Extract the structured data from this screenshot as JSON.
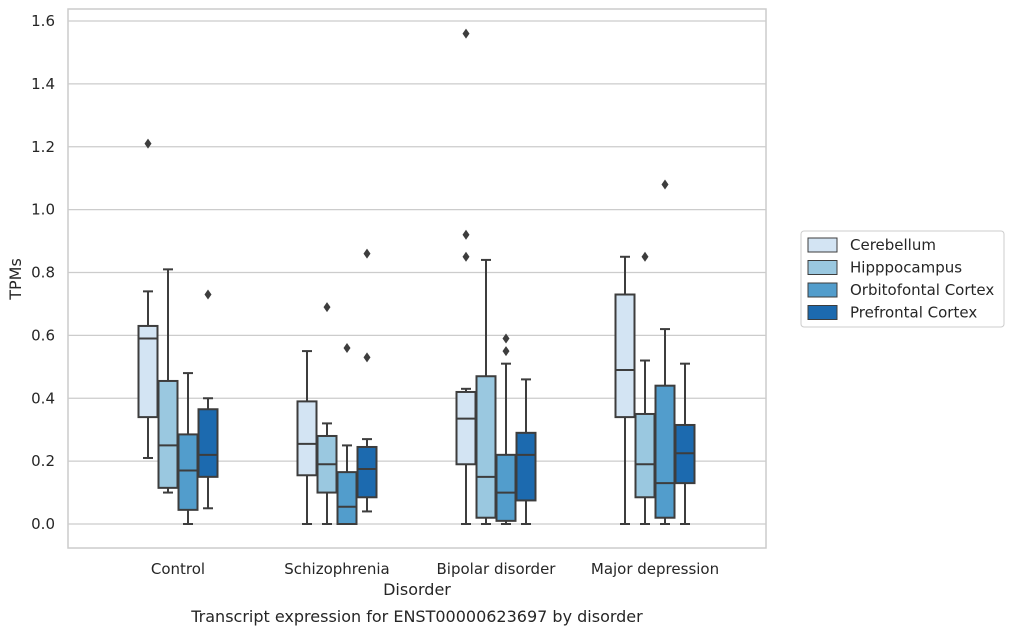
{
  "chart_data": {
    "type": "box",
    "caption": "Transcript expression for ENST00000623697 by disorder",
    "xlabel": "Disorder",
    "ylabel": "TPMs",
    "ylim": [
      -0.075,
      1.64
    ],
    "yticks": [
      0.0,
      0.2,
      0.4,
      0.6,
      0.8,
      1.0,
      1.2,
      1.4,
      1.6
    ],
    "ytick_labels": [
      "0.0",
      "0.2",
      "0.4",
      "0.6",
      "0.8",
      "1.0",
      "1.2",
      "1.4",
      "1.6"
    ],
    "grid": "horizontal",
    "legend_position": "right",
    "categories": [
      "Control",
      "Schizophrenia",
      "Bipolar disorder",
      "Major depression"
    ],
    "series": [
      {
        "name": "Cerebellum",
        "color": "#d3e4f3",
        "boxes": [
          {
            "whisker_low": 0.21,
            "q1": 0.34,
            "median": 0.59,
            "q3": 0.63,
            "whisker_high": 0.74,
            "outliers": [
              1.21
            ]
          },
          {
            "whisker_low": 0.0,
            "q1": 0.155,
            "median": 0.255,
            "q3": 0.39,
            "whisker_high": 0.55,
            "outliers": []
          },
          {
            "whisker_low": 0.0,
            "q1": 0.19,
            "median": 0.335,
            "q3": 0.42,
            "whisker_high": 0.43,
            "outliers": [
              0.85,
              0.92,
              1.56
            ]
          },
          {
            "whisker_low": 0.0,
            "q1": 0.34,
            "median": 0.49,
            "q3": 0.73,
            "whisker_high": 0.85,
            "outliers": []
          }
        ]
      },
      {
        "name": "Hipppocampus",
        "color": "#9ac8e0",
        "boxes": [
          {
            "whisker_low": 0.1,
            "q1": 0.115,
            "median": 0.25,
            "q3": 0.455,
            "whisker_high": 0.81,
            "outliers": []
          },
          {
            "whisker_low": 0.0,
            "q1": 0.1,
            "median": 0.19,
            "q3": 0.28,
            "whisker_high": 0.32,
            "outliers": [
              0.69
            ]
          },
          {
            "whisker_low": 0.0,
            "q1": 0.02,
            "median": 0.15,
            "q3": 0.47,
            "whisker_high": 0.84,
            "outliers": []
          },
          {
            "whisker_low": 0.0,
            "q1": 0.085,
            "median": 0.19,
            "q3": 0.35,
            "whisker_high": 0.52,
            "outliers": [
              0.85
            ]
          }
        ]
      },
      {
        "name": "Orbitofontal Cortex",
        "color": "#529dcc",
        "boxes": [
          {
            "whisker_low": 0.0,
            "q1": 0.045,
            "median": 0.17,
            "q3": 0.285,
            "whisker_high": 0.48,
            "outliers": []
          },
          {
            "whisker_low": 0.0,
            "q1": 0.0,
            "median": 0.055,
            "q3": 0.165,
            "whisker_high": 0.25,
            "outliers": [
              0.56
            ]
          },
          {
            "whisker_low": 0.0,
            "q1": 0.01,
            "median": 0.1,
            "q3": 0.22,
            "whisker_high": 0.51,
            "outliers": [
              0.55,
              0.59
            ]
          },
          {
            "whisker_low": 0.0,
            "q1": 0.02,
            "median": 0.13,
            "q3": 0.44,
            "whisker_high": 0.62,
            "outliers": [
              1.08
            ]
          }
        ]
      },
      {
        "name": "Prefrontal Cortex",
        "color": "#1c6aaf",
        "boxes": [
          {
            "whisker_low": 0.05,
            "q1": 0.15,
            "median": 0.22,
            "q3": 0.365,
            "whisker_high": 0.4,
            "outliers": [
              0.73
            ]
          },
          {
            "whisker_low": 0.04,
            "q1": 0.085,
            "median": 0.175,
            "q3": 0.245,
            "whisker_high": 0.27,
            "outliers": [
              0.53,
              0.86
            ]
          },
          {
            "whisker_low": 0.0,
            "q1": 0.075,
            "median": 0.22,
            "q3": 0.29,
            "whisker_high": 0.46,
            "outliers": []
          },
          {
            "whisker_low": 0.0,
            "q1": 0.13,
            "median": 0.225,
            "q3": 0.315,
            "whisker_high": 0.51,
            "outliers": []
          }
        ]
      }
    ]
  }
}
